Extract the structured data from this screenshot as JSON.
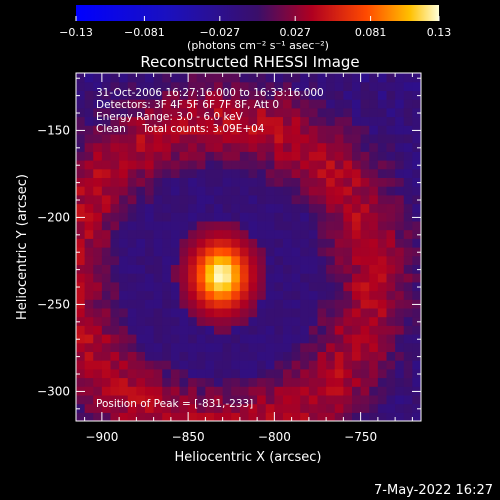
{
  "chart_data": {
    "type": "heatmap",
    "title": "Reconstructed RHESSI Image",
    "xlabel": "Heliocentric X (arcsec)",
    "ylabel": "Heliocentric Y (arcsec)",
    "xlim": [
      -915,
      -715
    ],
    "ylim": [
      -317,
      -117
    ],
    "x_ticks": [
      -900,
      -850,
      -800,
      -750
    ],
    "y_ticks": [
      -150,
      -200,
      -250,
      -300
    ],
    "annotations": [
      "31-Oct-2006 16:27:16.000 to 16:33:16.000",
      "Detectors: 3F 4F 5F 6F 7F 8F, Att 0",
      "Energy Range: 3.0 - 6.0 keV",
      "Clean     Total counts: 3.09E+04"
    ],
    "peak_label": "Position of Peak = [-831,-233]",
    "peak": {
      "x": -831,
      "y": -233
    },
    "colorbar": {
      "range": [
        -0.13,
        0.13
      ],
      "ticks": [
        "-0.13",
        "-0.081",
        "-0.027",
        "0.027",
        "0.081",
        "0.13"
      ],
      "units": "(photons cm⁻² s⁻¹ asec⁻²)"
    },
    "grid": false,
    "legend": "none"
  },
  "footer_date": "7-May-2022 16:27"
}
